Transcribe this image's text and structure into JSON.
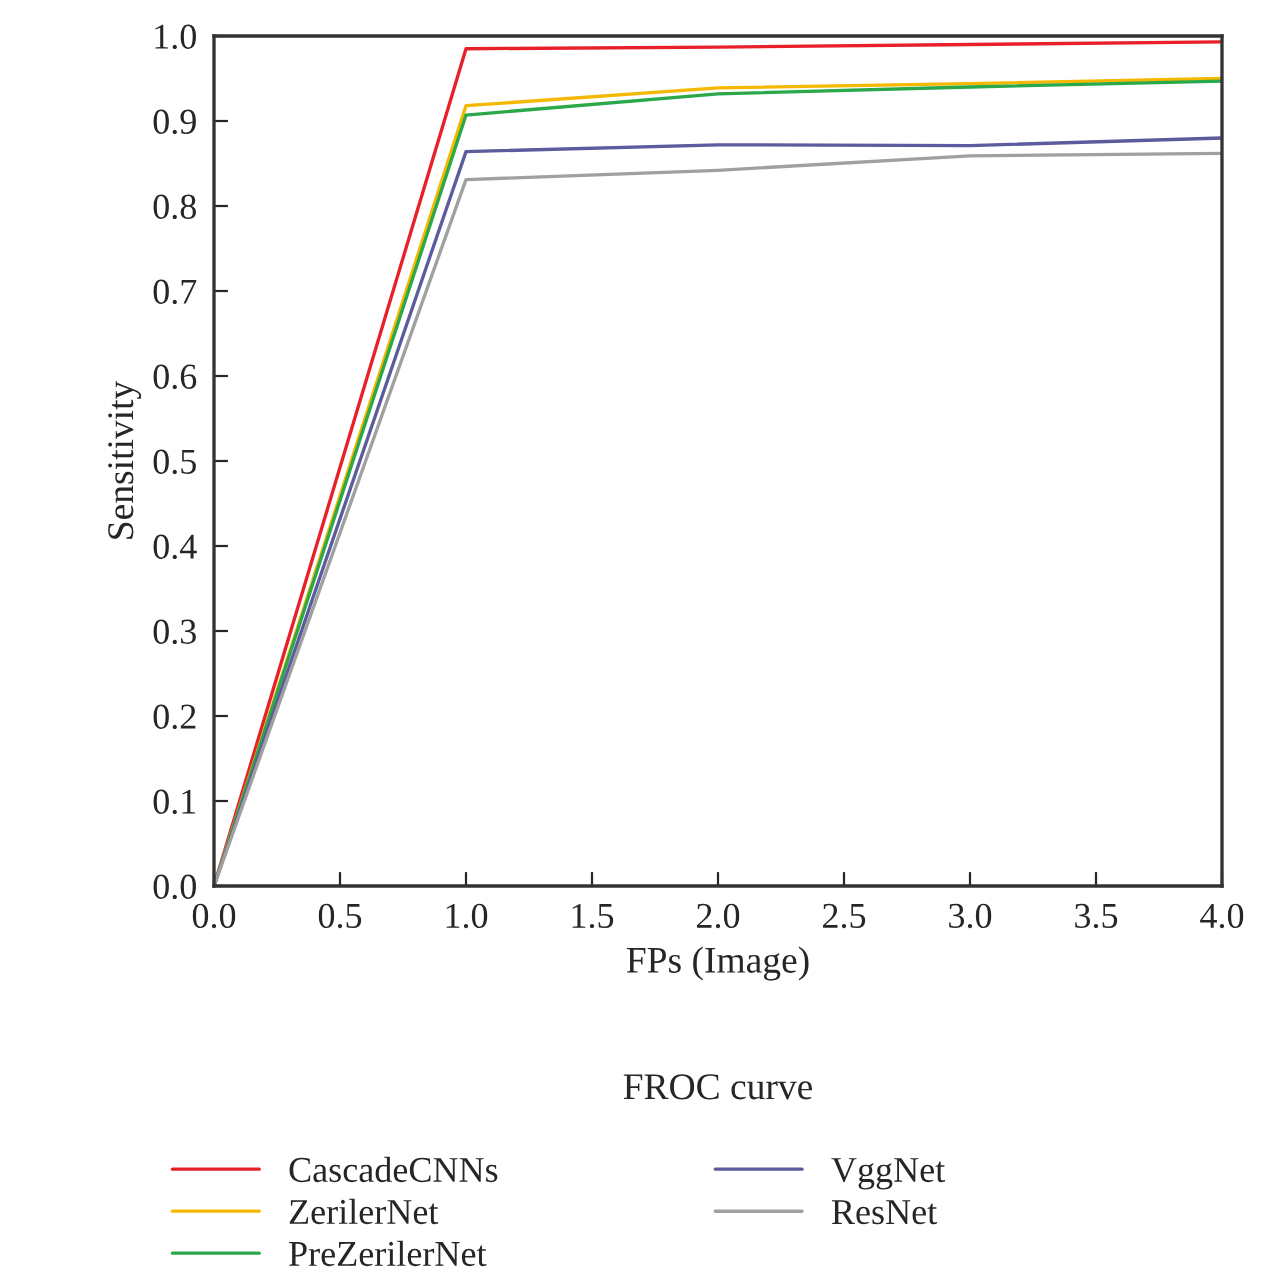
{
  "chart_data": {
    "type": "line",
    "title": "FROC curve",
    "xlabel": "FPs (Image)",
    "ylabel": "Sensitivity",
    "x": [
      0,
      1,
      2,
      3,
      4
    ],
    "series": [
      {
        "name": "CascadeCNNs",
        "color": "#e8202a",
        "values": [
          0.0,
          0.985,
          0.987,
          0.99,
          0.993
        ]
      },
      {
        "name": "ZerilerNet",
        "color": "#f5b800",
        "values": [
          0.0,
          0.918,
          0.939,
          0.944,
          0.95
        ]
      },
      {
        "name": "PreZerilerNet",
        "color": "#2aa84a",
        "values": [
          0.0,
          0.907,
          0.932,
          0.94,
          0.947
        ]
      },
      {
        "name": "VggNet",
        "color": "#5b5b9e",
        "values": [
          0.0,
          0.864,
          0.872,
          0.871,
          0.88
        ]
      },
      {
        "name": "ResNet",
        "color": "#a0a0a0",
        "values": [
          0.0,
          0.831,
          0.842,
          0.859,
          0.862
        ]
      }
    ],
    "xlim": [
      0,
      4
    ],
    "ylim": [
      0,
      1
    ],
    "xticks": [
      {
        "value": 0,
        "label": "0.0"
      },
      0.5,
      {
        "value": 1,
        "label": "1.0"
      },
      1.5,
      {
        "value": 2,
        "label": "2.0"
      },
      2.5,
      {
        "value": 3,
        "label": "3.0"
      },
      3.5,
      {
        "value": 4,
        "label": "4.0"
      }
    ],
    "yticks": [
      {
        "value": 0,
        "label": "0.0"
      },
      0.1,
      0.2,
      0.3,
      0.4,
      0.5,
      0.6,
      0.7,
      0.8,
      0.9,
      {
        "value": 1,
        "label": "1.0"
      }
    ],
    "legend": "bottom",
    "grid": false
  }
}
